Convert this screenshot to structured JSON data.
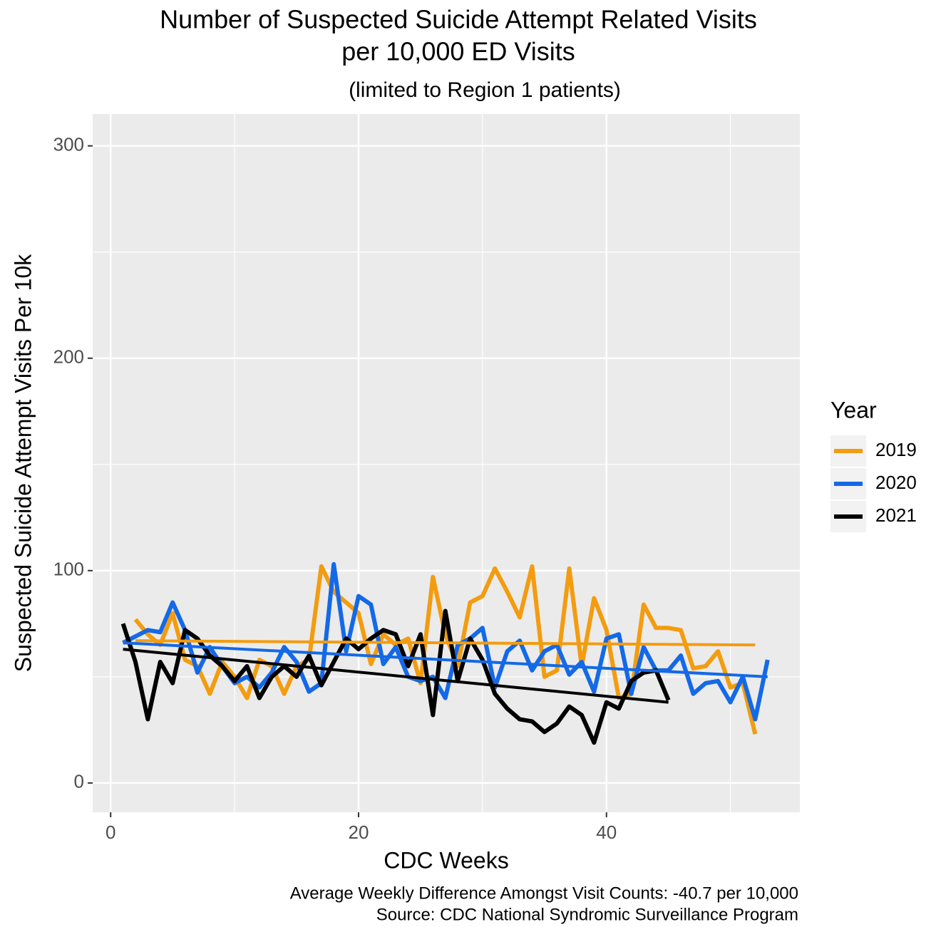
{
  "chart_data": {
    "type": "line",
    "title": [
      "Number of Suspected Suicide Attempt Related Visits",
      "per 10,000 ED Visits"
    ],
    "subtitle": "(limited to Region 1 patients)",
    "x_label": "CDC Weeks",
    "y_label": "Suspected Suicide Attempt Visits Per 10k",
    "caption": [
      "Average Weekly Difference Amongst Visit Counts: -40.7 per 10,000",
      "Source: CDC National Syndromic Surveillance Program"
    ],
    "legend_title": "Year",
    "xlim": [
      -1.45,
      55.6
    ],
    "xticks": [
      0,
      20,
      40
    ],
    "ylim": [
      -13.8,
      315
    ],
    "yticks": [
      0,
      100,
      200,
      300
    ],
    "grid": true,
    "legend_position": "right",
    "series": [
      {
        "name": "2019",
        "color": "#f39c0f",
        "x": [
          2,
          3,
          4,
          5,
          6,
          7,
          8,
          9,
          10,
          11,
          12,
          13,
          14,
          15,
          16,
          17,
          18,
          19,
          20,
          21,
          22,
          23,
          24,
          25,
          26,
          27,
          28,
          29,
          30,
          31,
          32,
          33,
          34,
          35,
          36,
          37,
          38,
          39,
          40,
          41,
          42,
          43,
          44,
          45,
          46,
          47,
          48,
          49,
          50,
          51,
          52
        ],
        "values": [
          77,
          70,
          65,
          80,
          58,
          55,
          42,
          57,
          50,
          40,
          58,
          55,
          42,
          55,
          58,
          102,
          90,
          85,
          80,
          56,
          70,
          65,
          68,
          47,
          97,
          70,
          55,
          85,
          88,
          101,
          90,
          78,
          102,
          50,
          53,
          101,
          55,
          87,
          72,
          40,
          42,
          84,
          73,
          73,
          72,
          54,
          55,
          62,
          45,
          47,
          23
        ],
        "trend": {
          "x": [
            2,
            52
          ],
          "values": [
            67,
            65
          ]
        }
      },
      {
        "name": "2020",
        "color": "#1469e6",
        "x": [
          1,
          2,
          3,
          4,
          5,
          6,
          7,
          8,
          9,
          10,
          11,
          12,
          13,
          14,
          15,
          16,
          17,
          18,
          19,
          20,
          21,
          22,
          23,
          24,
          25,
          26,
          27,
          28,
          29,
          30,
          31,
          32,
          33,
          34,
          35,
          36,
          37,
          38,
          39,
          40,
          41,
          42,
          43,
          44,
          45,
          46,
          47,
          48,
          49,
          50,
          51,
          52,
          53
        ],
        "values": [
          66,
          69,
          72,
          71,
          85,
          72,
          52,
          64,
          55,
          47,
          50,
          45,
          52,
          64,
          57,
          43,
          47,
          103,
          62,
          88,
          84,
          56,
          64,
          50,
          48,
          50,
          40,
          65,
          68,
          73,
          45,
          62,
          67,
          53,
          62,
          65,
          51,
          57,
          43,
          68,
          70,
          42,
          64,
          53,
          53,
          60,
          42,
          47,
          48,
          38,
          50,
          30,
          58
        ],
        "trend": {
          "x": [
            1,
            53
          ],
          "values": [
            66,
            50
          ]
        }
      },
      {
        "name": "2021",
        "color": "#000000",
        "x": [
          1,
          2,
          3,
          4,
          5,
          6,
          7,
          8,
          9,
          10,
          11,
          12,
          13,
          14,
          15,
          16,
          17,
          18,
          19,
          20,
          21,
          22,
          23,
          24,
          25,
          26,
          27,
          28,
          29,
          30,
          31,
          32,
          33,
          34,
          35,
          36,
          37,
          38,
          39,
          40,
          41,
          42,
          43,
          44,
          45
        ],
        "values": [
          75,
          57,
          30,
          57,
          47,
          72,
          68,
          60,
          55,
          48,
          55,
          40,
          50,
          55,
          50,
          60,
          46,
          57,
          68,
          63,
          68,
          72,
          70,
          55,
          70,
          32,
          81,
          48,
          68,
          58,
          42,
          35,
          30,
          29,
          24,
          28,
          36,
          32,
          19,
          38,
          35,
          48,
          52,
          53,
          39
        ],
        "trend": {
          "x": [
            1,
            45
          ],
          "values": [
            63,
            38
          ]
        }
      }
    ]
  }
}
